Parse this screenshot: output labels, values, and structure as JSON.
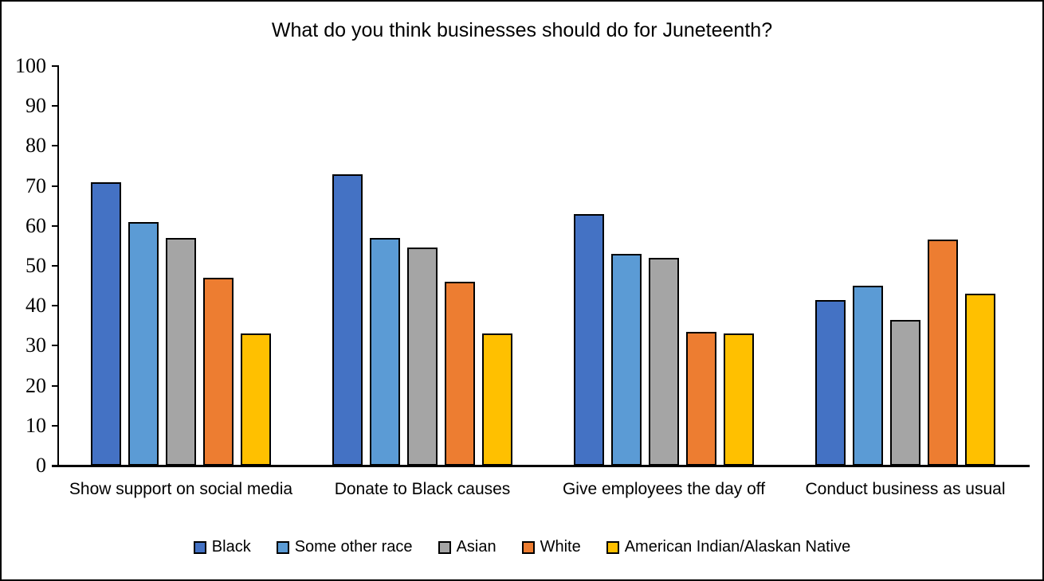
{
  "title": "What do you think businesses should do for Juneteenth?",
  "chart_data": {
    "type": "bar",
    "title": "What do you think businesses should do for Juneteenth?",
    "categories": [
      "Show support on social media",
      "Donate to Black causes",
      "Give employees the day off",
      "Conduct business as usual"
    ],
    "series": [
      {
        "name": "Black",
        "color": "#4472C4",
        "values": [
          71,
          73,
          63,
          41.5
        ]
      },
      {
        "name": "Some other race",
        "color": "#5B9BD5",
        "values": [
          61,
          57,
          53,
          45
        ]
      },
      {
        "name": "Asian",
        "color": "#A5A5A5",
        "values": [
          57,
          54.5,
          52,
          36.5
        ]
      },
      {
        "name": "White",
        "color": "#ED7D31",
        "values": [
          47,
          46,
          33.5,
          56.5
        ]
      },
      {
        "name": "American Indian/Alaskan Native",
        "color": "#FFC000",
        "values": [
          33,
          33,
          33,
          43
        ]
      }
    ],
    "xlabel": "",
    "ylabel": "",
    "ylim": [
      0,
      100
    ],
    "yticks": [
      0,
      10,
      20,
      30,
      40,
      50,
      60,
      70,
      80,
      90,
      100
    ],
    "grid": false,
    "legend_position": "bottom",
    "axis_color": "#000000",
    "bar_border_color": "#000000",
    "background_color": "#FFFFFF"
  }
}
